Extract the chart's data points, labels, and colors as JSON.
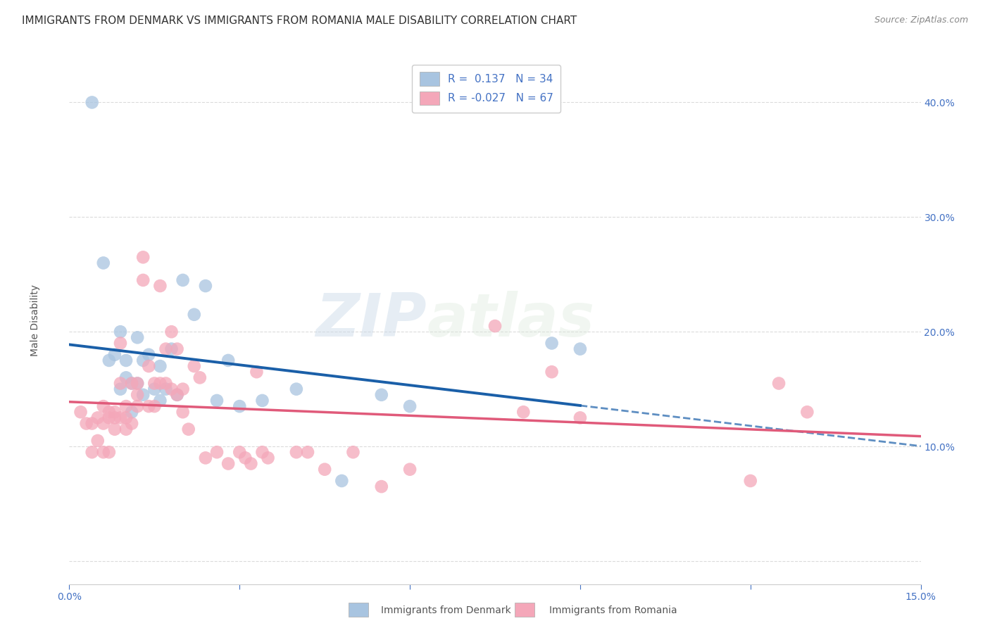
{
  "title": "IMMIGRANTS FROM DENMARK VS IMMIGRANTS FROM ROMANIA MALE DISABILITY CORRELATION CHART",
  "source": "Source: ZipAtlas.com",
  "ylabel": "Male Disability",
  "xlim": [
    0.0,
    0.15
  ],
  "ylim": [
    -0.02,
    0.44
  ],
  "xticks": [
    0.0,
    0.03,
    0.06,
    0.09,
    0.12,
    0.15
  ],
  "xtick_labels": [
    "0.0%",
    "",
    "",
    "",
    "",
    "15.0%"
  ],
  "ytick_positions": [
    0.0,
    0.1,
    0.2,
    0.3,
    0.4
  ],
  "ytick_labels": [
    "",
    "10.0%",
    "20.0%",
    "30.0%",
    "40.0%"
  ],
  "denmark_color": "#a8c4e0",
  "romania_color": "#f4a7b9",
  "denmark_line_color": "#1a5fa8",
  "romania_line_color": "#e05a7a",
  "R_denmark": 0.137,
  "N_denmark": 34,
  "R_romania": -0.027,
  "N_romania": 67,
  "legend_label_denmark": "Immigrants from Denmark",
  "legend_label_romania": "Immigrants from Romania",
  "denmark_x": [
    0.004,
    0.006,
    0.007,
    0.008,
    0.009,
    0.009,
    0.01,
    0.01,
    0.011,
    0.011,
    0.012,
    0.012,
    0.013,
    0.013,
    0.014,
    0.015,
    0.016,
    0.016,
    0.017,
    0.018,
    0.019,
    0.02,
    0.022,
    0.024,
    0.026,
    0.028,
    0.03,
    0.034,
    0.04,
    0.048,
    0.055,
    0.06,
    0.085,
    0.09
  ],
  "denmark_y": [
    0.4,
    0.26,
    0.175,
    0.18,
    0.2,
    0.15,
    0.175,
    0.16,
    0.155,
    0.13,
    0.155,
    0.195,
    0.175,
    0.145,
    0.18,
    0.15,
    0.17,
    0.14,
    0.15,
    0.185,
    0.145,
    0.245,
    0.215,
    0.24,
    0.14,
    0.175,
    0.135,
    0.14,
    0.15,
    0.07,
    0.145,
    0.135,
    0.19,
    0.185
  ],
  "romania_x": [
    0.002,
    0.003,
    0.004,
    0.004,
    0.005,
    0.005,
    0.006,
    0.006,
    0.006,
    0.007,
    0.007,
    0.007,
    0.008,
    0.008,
    0.008,
    0.009,
    0.009,
    0.009,
    0.01,
    0.01,
    0.01,
    0.011,
    0.011,
    0.012,
    0.012,
    0.012,
    0.013,
    0.013,
    0.014,
    0.014,
    0.015,
    0.015,
    0.016,
    0.016,
    0.017,
    0.017,
    0.018,
    0.018,
    0.019,
    0.019,
    0.02,
    0.02,
    0.021,
    0.022,
    0.023,
    0.024,
    0.026,
    0.028,
    0.03,
    0.031,
    0.032,
    0.033,
    0.034,
    0.035,
    0.04,
    0.042,
    0.045,
    0.05,
    0.055,
    0.06,
    0.075,
    0.08,
    0.085,
    0.09,
    0.12,
    0.125,
    0.13
  ],
  "romania_y": [
    0.13,
    0.12,
    0.12,
    0.095,
    0.125,
    0.105,
    0.135,
    0.12,
    0.095,
    0.13,
    0.125,
    0.095,
    0.125,
    0.13,
    0.115,
    0.19,
    0.155,
    0.125,
    0.135,
    0.125,
    0.115,
    0.155,
    0.12,
    0.155,
    0.145,
    0.135,
    0.265,
    0.245,
    0.17,
    0.135,
    0.155,
    0.135,
    0.24,
    0.155,
    0.185,
    0.155,
    0.2,
    0.15,
    0.185,
    0.145,
    0.15,
    0.13,
    0.115,
    0.17,
    0.16,
    0.09,
    0.095,
    0.085,
    0.095,
    0.09,
    0.085,
    0.165,
    0.095,
    0.09,
    0.095,
    0.095,
    0.08,
    0.095,
    0.065,
    0.08,
    0.205,
    0.13,
    0.165,
    0.125,
    0.07,
    0.155,
    0.13
  ],
  "background_color": "#ffffff",
  "grid_color": "#cccccc",
  "watermark_text": "ZIP",
  "watermark_text2": "atlas",
  "title_fontsize": 11,
  "axis_label_fontsize": 10,
  "tick_fontsize": 10,
  "legend_fontsize": 11,
  "denmark_trend_solid_end": 0.09,
  "denmark_trend_dash_start": 0.09,
  "denmark_trend_dash_end": 0.15
}
